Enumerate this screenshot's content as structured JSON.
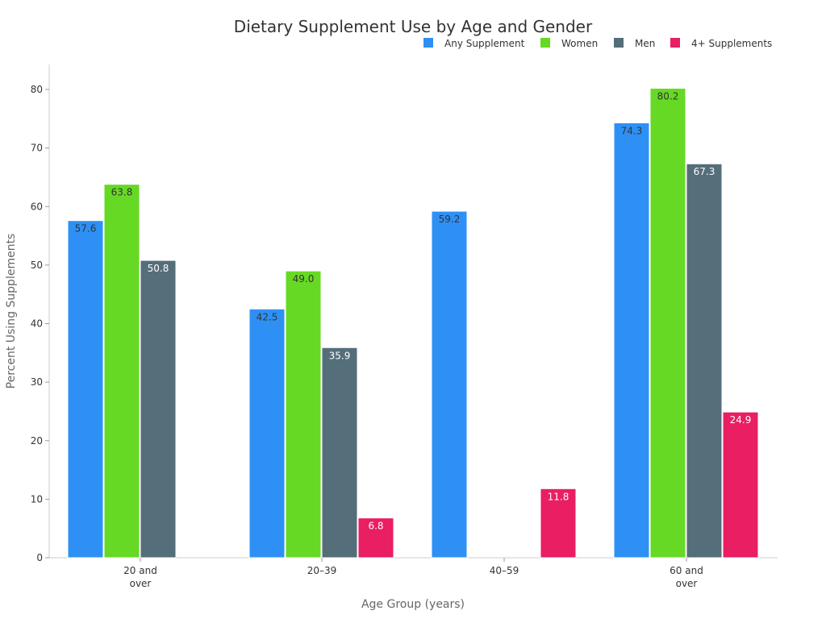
{
  "chart_data": {
    "type": "bar",
    "title": "Dietary Supplement Use by Age and Gender",
    "xlabel": "Age Group (years)",
    "ylabel": "Percent Using Supplements",
    "ylim": [
      0,
      84
    ],
    "yticks": [
      0,
      10,
      20,
      30,
      40,
      50,
      60,
      70,
      80
    ],
    "grid": false,
    "legend_position": "top-right",
    "categories": [
      [
        "20 and",
        "over"
      ],
      [
        "20–39"
      ],
      [
        "40–59"
      ],
      [
        "60 and",
        "over"
      ]
    ],
    "series": [
      {
        "name": "Any Supplement",
        "color": "#2E90F5",
        "label_color": "#333333",
        "values": [
          57.6,
          42.5,
          59.2,
          74.3
        ]
      },
      {
        "name": "Women",
        "color": "#66D924",
        "label_color": "#333333",
        "values": [
          63.8,
          49.0,
          null,
          80.2
        ]
      },
      {
        "name": "Men",
        "color": "#546E7A",
        "label_color": "#ffffff",
        "values": [
          50.8,
          35.9,
          null,
          67.3
        ]
      },
      {
        "name": "4+ Supplements",
        "color": "#E91E63",
        "label_color": "#ffffff",
        "values": [
          null,
          6.8,
          11.8,
          24.9
        ]
      }
    ]
  }
}
